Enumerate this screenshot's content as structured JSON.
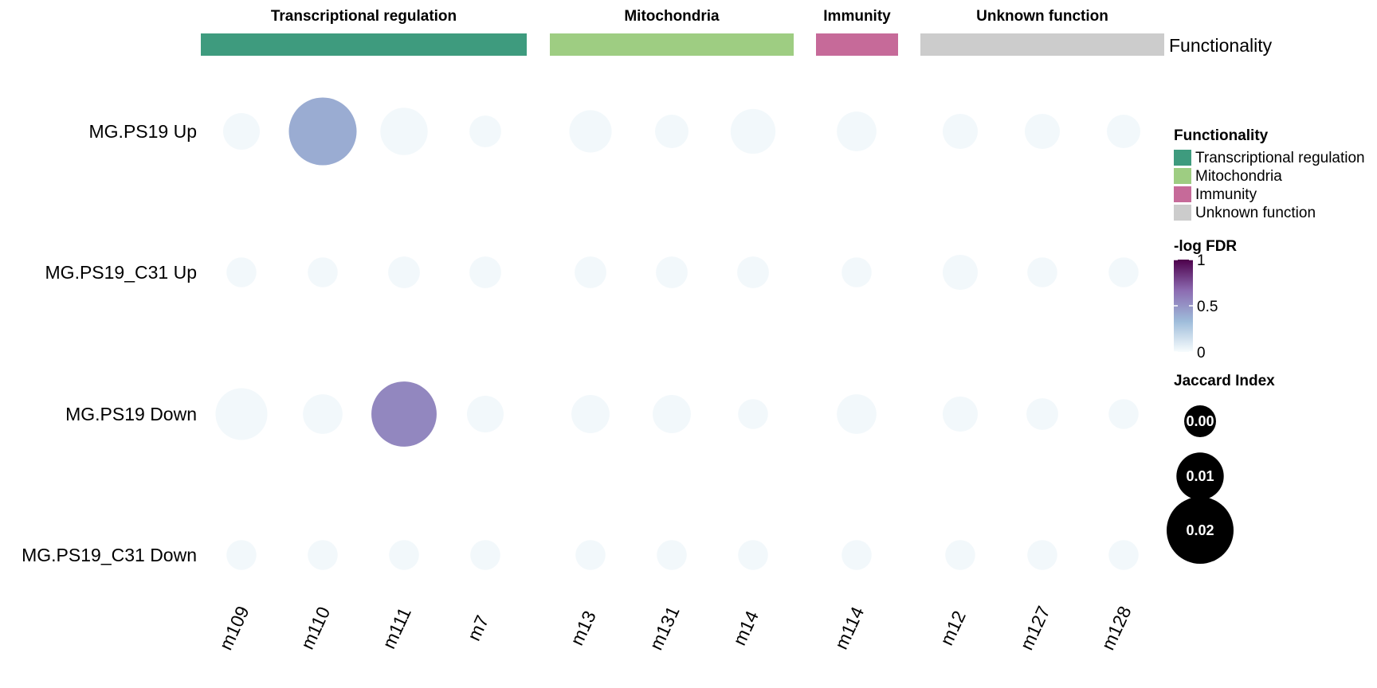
{
  "chart_data": {
    "type": "scatter",
    "annotation_name": "Functionality",
    "groups": [
      {
        "name": "Transcriptional regulation",
        "color": "#3e9b7e",
        "columns": [
          "m109",
          "m110",
          "m111",
          "m7"
        ]
      },
      {
        "name": "Mitochondria",
        "color": "#9ecd82",
        "columns": [
          "m13",
          "m131",
          "m14"
        ]
      },
      {
        "name": "Immunity",
        "color": "#c66a99",
        "columns": [
          "m114"
        ]
      },
      {
        "name": "Unknown function",
        "color": "#cccccc",
        "columns": [
          "m12",
          "m127",
          "m128"
        ]
      }
    ],
    "rows": [
      "MG.PS19 Up",
      "MG.PS19_C31 Up",
      "MG.PS19 Down",
      "MG.PS19_C31 Down"
    ],
    "columns": [
      "m109",
      "m110",
      "m111",
      "m7",
      "m13",
      "m131",
      "m14",
      "m114",
      "m12",
      "m127",
      "m128"
    ],
    "jaccard": [
      [
        0.006,
        0.0205,
        0.01,
        0.0045,
        0.008,
        0.005,
        0.009,
        0.007,
        0.0055,
        0.0055,
        0.005
      ],
      [
        0.004,
        0.004,
        0.0045,
        0.0045,
        0.0045,
        0.0045,
        0.0045,
        0.004,
        0.0055,
        0.004,
        0.004
      ],
      [
        0.012,
        0.007,
        0.019,
        0.006,
        0.0065,
        0.0065,
        0.004,
        0.007,
        0.0055,
        0.0045,
        0.004
      ],
      [
        0.004,
        0.004,
        0.004,
        0.004,
        0.004,
        0.004,
        0.004,
        0.004,
        0.004,
        0.004,
        0.004
      ]
    ],
    "neg_log_fdr": [
      [
        0.02,
        0.4,
        0.02,
        0.02,
        0.02,
        0.02,
        0.02,
        0.02,
        0.02,
        0.02,
        0.02
      ],
      [
        0.02,
        0.02,
        0.02,
        0.02,
        0.02,
        0.02,
        0.02,
        0.02,
        0.02,
        0.02,
        0.02
      ],
      [
        0.02,
        0.02,
        0.55,
        0.02,
        0.02,
        0.02,
        0.02,
        0.02,
        0.02,
        0.02,
        0.02
      ],
      [
        0.02,
        0.02,
        0.02,
        0.02,
        0.02,
        0.02,
        0.02,
        0.02,
        0.02,
        0.02,
        0.02
      ]
    ],
    "color_legend": {
      "title": "-log FDR",
      "range": [
        0,
        1
      ],
      "ticks": [
        "1",
        "0.5",
        "0"
      ],
      "tick_values": [
        1,
        0.5,
        0
      ],
      "colors": [
        "#f7fcfd",
        "#9ebcda",
        "#8c6bb1",
        "#4d004b"
      ]
    },
    "size_legend": {
      "title": "Jaccard Index",
      "values": [
        0.002,
        0.01,
        0.02
      ],
      "labels": [
        "0.00",
        "0.01",
        "0.02"
      ]
    },
    "legend_placement": "right",
    "grid": false
  }
}
